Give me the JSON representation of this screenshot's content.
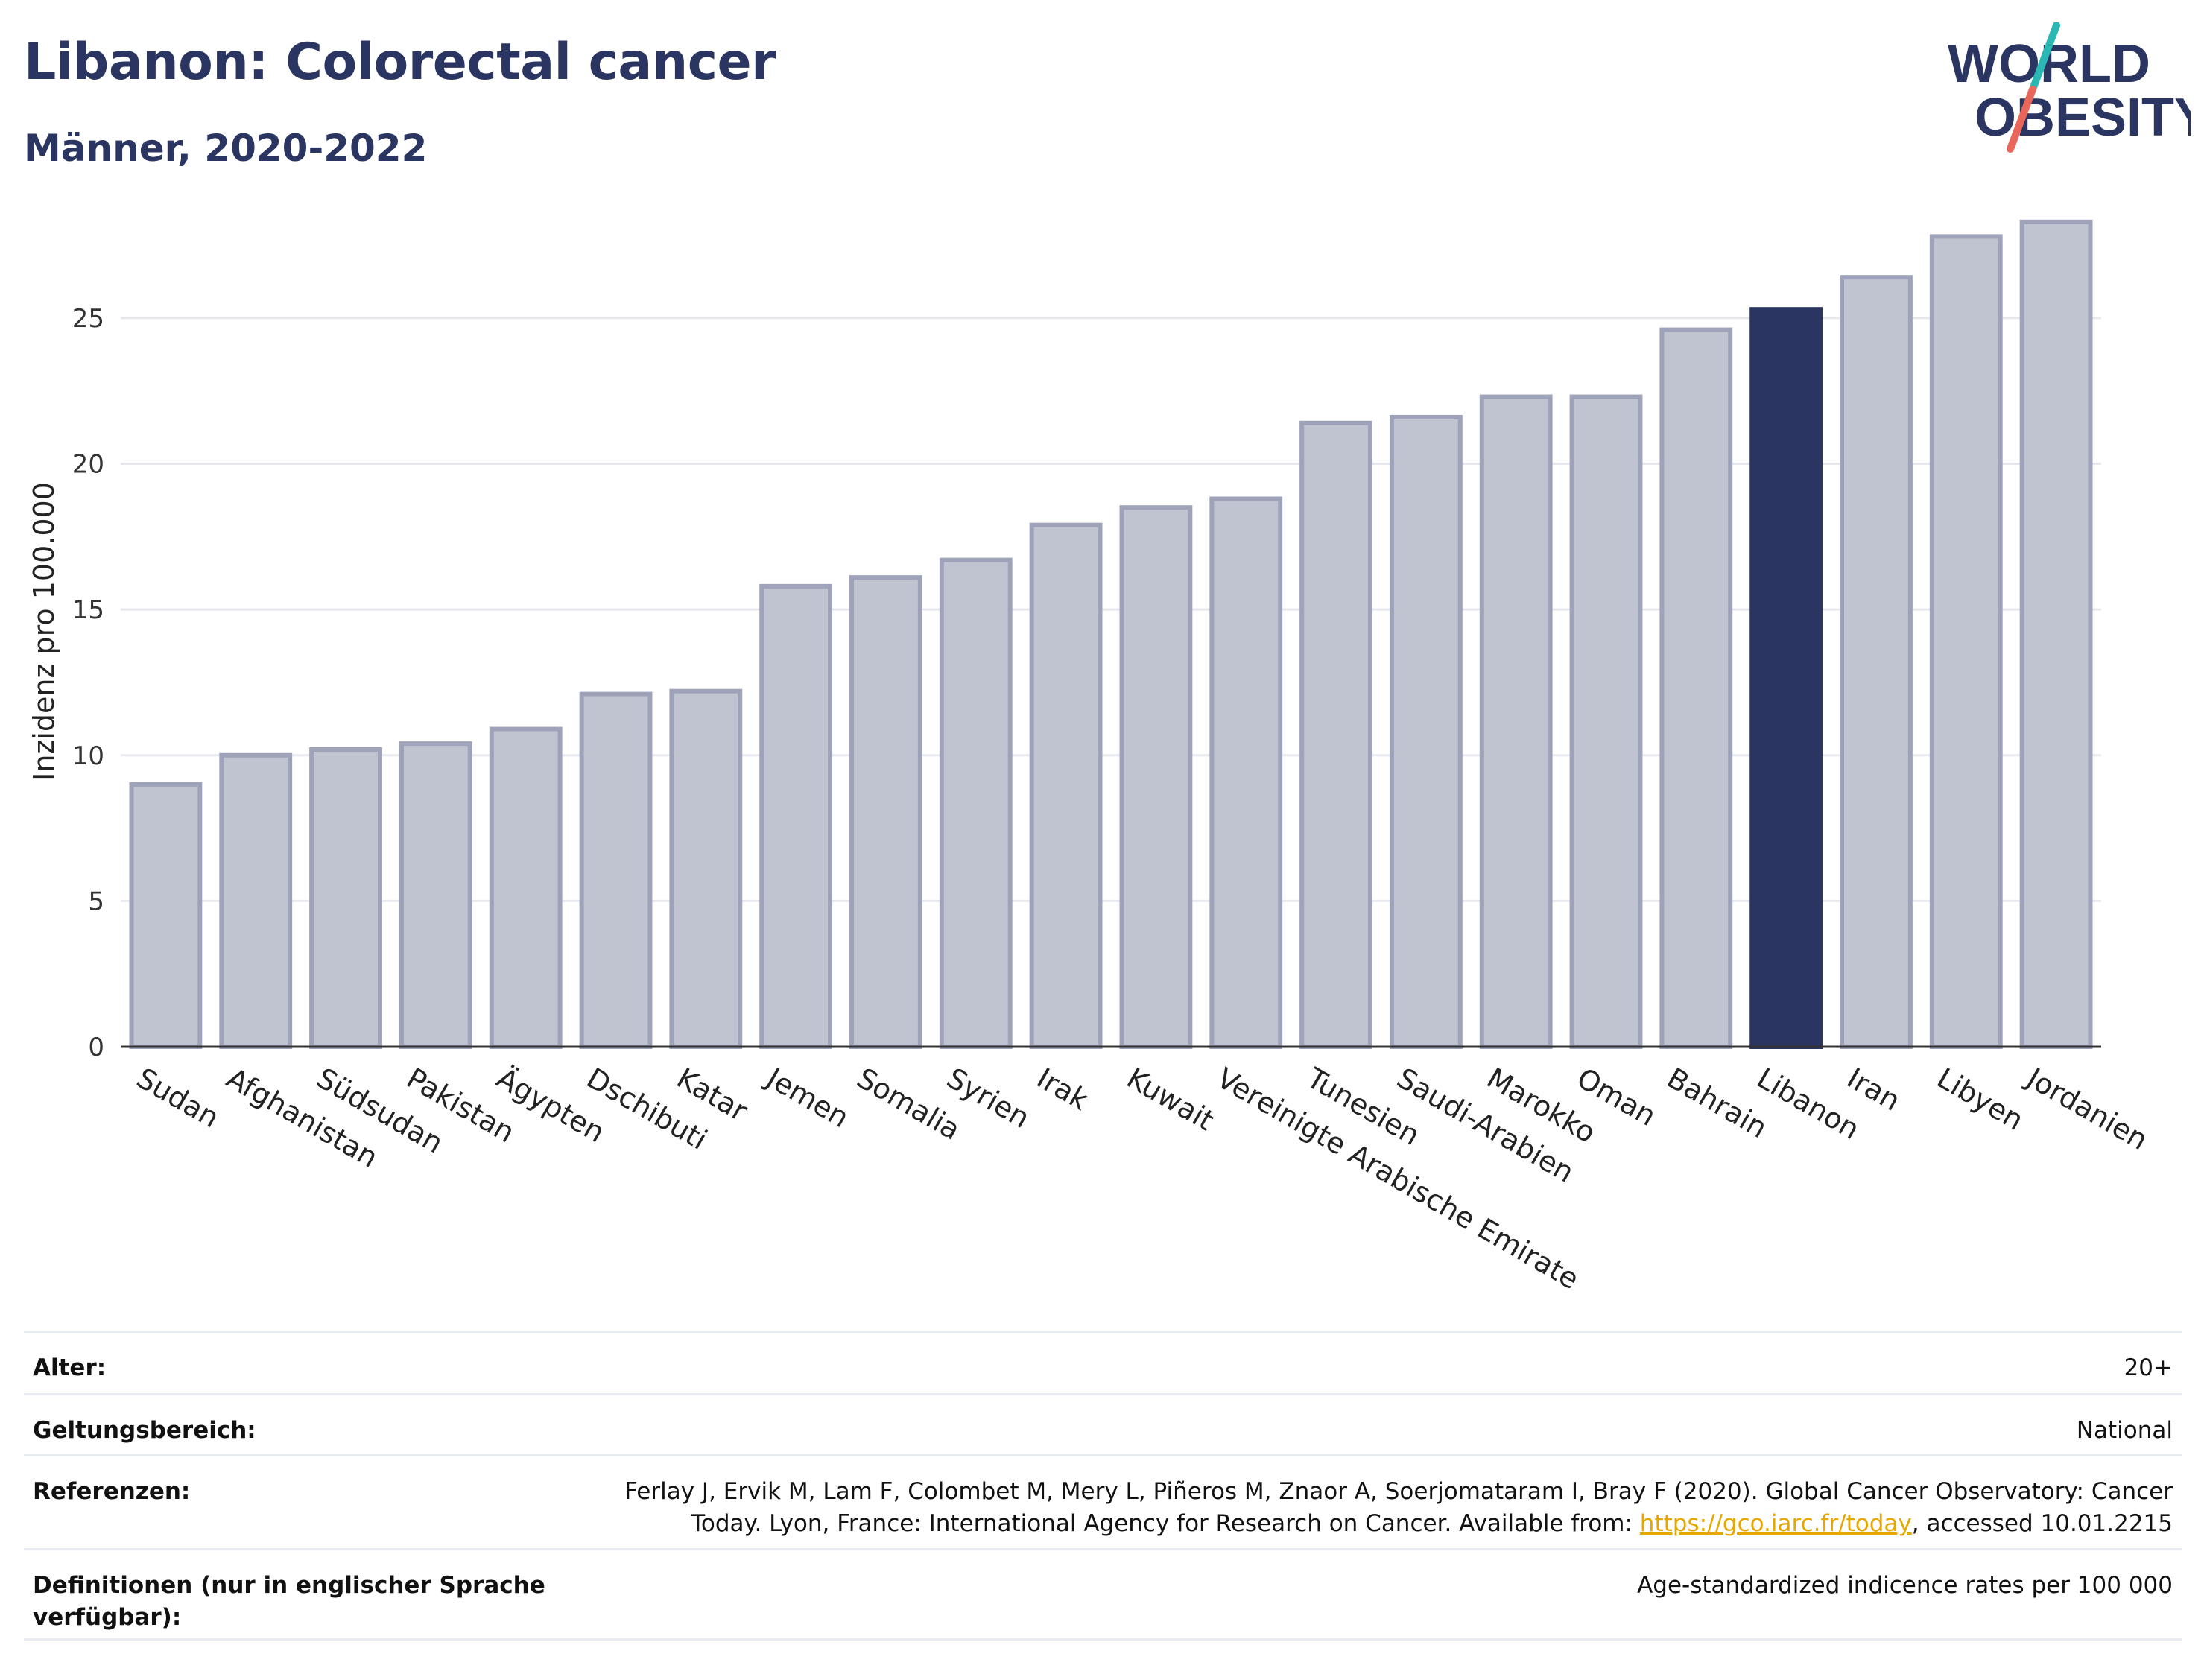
{
  "header": {
    "title": "Libanon: Colorectal cancer",
    "subtitle": "Männer, 2020-2022"
  },
  "logo": {
    "line1": "WORLD",
    "line2": "OBESITY",
    "colors": {
      "text": "#2b3561",
      "slash_teal": "#2bb7b3",
      "slash_red": "#e8665a"
    }
  },
  "chart_data": {
    "type": "bar",
    "title": "",
    "xlabel": "",
    "ylabel": "Inzidenz pro 100.000",
    "ylim": [
      0,
      28.5
    ],
    "yticks": [
      0,
      5,
      10,
      15,
      20,
      25
    ],
    "grid": true,
    "highlight": "Libanon",
    "colors": {
      "bar": "#c0c3d0",
      "bar_border": "#9ea3ba",
      "highlight": "#2b3561",
      "grid": "#e6e8ee",
      "axis": "#333333"
    },
    "categories": [
      "Sudan",
      "Afghanistan",
      "Südsudan",
      "Pakistan",
      "Ägypten",
      "Dschibuti",
      "Katar",
      "Jemen",
      "Somalia",
      "Syrien",
      "Irak",
      "Kuwait",
      "Vereinigte Arabische Emirate",
      "Tunesien",
      "Saudi-Arabien",
      "Marokko",
      "Oman",
      "Bahrain",
      "Libanon",
      "Iran",
      "Libyen",
      "Jordanien"
    ],
    "values": [
      9.0,
      10.0,
      10.2,
      10.4,
      10.9,
      12.1,
      12.2,
      15.8,
      16.1,
      16.7,
      17.9,
      18.5,
      18.8,
      21.4,
      21.6,
      22.3,
      22.3,
      24.6,
      25.3,
      26.4,
      27.8,
      28.3
    ]
  },
  "info": {
    "age_label": "Alter:",
    "age_value": "20+",
    "scope_label": "Geltungsbereich:",
    "scope_value": "National",
    "ref_label": "Referenzen:",
    "ref_text_1": "Ferlay J, Ervik M, Lam F, Colombet M, Mery L, Piñeros M, Znaor A, Soerjomataram I, Bray F (2020). Global Cancer Observatory: Cancer Today. Lyon, France: International Agency for Research on Cancer. Available from: ",
    "ref_link": "https://gco.iarc.fr/today",
    "ref_text_2": ", accessed 10.01.2215",
    "def_label": "Definitionen (nur in englischer Sprache verfügbar):",
    "def_value": "Age-standardized indicence rates per 100 000"
  }
}
